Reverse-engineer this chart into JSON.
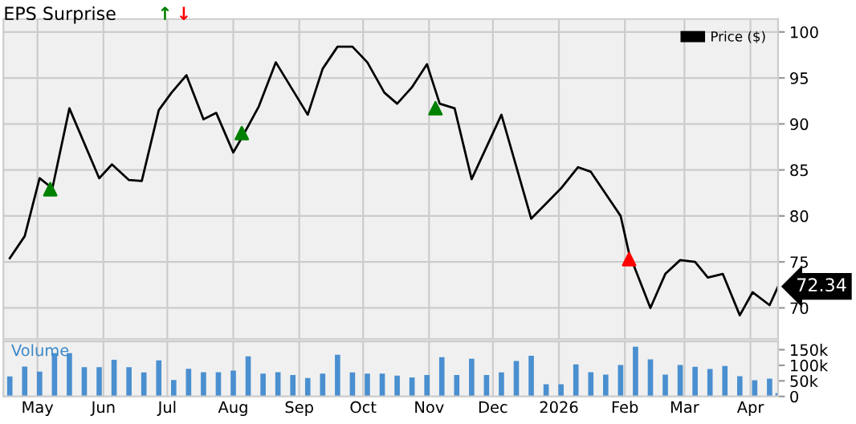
{
  "chart_data": [
    {
      "type": "line",
      "title": "EPS Surprise",
      "xlim": [
        "2025-04-15",
        "2026-04-14"
      ],
      "ylim": [
        66.6,
        101.4
      ],
      "yticks": [
        70,
        75,
        80,
        85,
        90,
        95,
        100
      ],
      "xticks": [
        {
          "value": "2025-05-01",
          "label": null
        },
        {
          "value": "2025-06-01",
          "label": null
        },
        {
          "value": "2025-07-01",
          "label": null
        },
        {
          "value": "2025-08-01",
          "label": null
        },
        {
          "value": "2025-09-01",
          "label": null
        },
        {
          "value": "2025-10-01",
          "label": null
        },
        {
          "value": "2025-11-01",
          "label": null
        },
        {
          "value": "2025-12-01",
          "label": null
        },
        {
          "value": "2026-01-01",
          "label": null
        },
        {
          "value": "2026-02-01",
          "label": null
        },
        {
          "value": "2026-03-01",
          "label": null
        },
        {
          "value": "2026-04-01",
          "label": null
        }
      ],
      "grid": true,
      "legend": "top right",
      "tick_labels": "y",
      "series": [
        {
          "name": "Price ($)",
          "type": "line",
          "color": "#000000",
          "x": [
            "2025-04-18",
            "2025-04-25",
            "2025-05-02",
            "2025-05-08",
            "2025-05-16",
            "2025-05-30",
            "2025-06-05",
            "2025-06-13",
            "2025-06-19",
            "2025-06-27",
            "2025-07-03",
            "2025-07-10",
            "2025-07-18",
            "2025-07-24",
            "2025-08-01",
            "2025-08-05",
            "2025-08-13",
            "2025-08-21",
            "2025-09-05",
            "2025-09-12",
            "2025-09-19",
            "2025-09-26",
            "2025-10-03",
            "2025-10-11",
            "2025-10-17",
            "2025-10-24",
            "2025-10-31",
            "2025-11-06",
            "2025-11-13",
            "2025-11-21",
            "2025-12-05",
            "2025-12-19",
            "2026-01-02",
            "2026-01-10",
            "2026-01-16",
            "2026-01-30",
            "2026-02-03",
            "2026-02-13",
            "2026-02-20",
            "2026-02-27",
            "2026-03-06",
            "2026-03-12",
            "2026-03-19",
            "2026-03-27",
            "2026-04-02",
            "2026-04-10",
            "2026-04-14"
          ],
          "values": [
            75.4,
            77.8,
            84.1,
            83.0,
            91.7,
            84.1,
            85.6,
            83.9,
            83.8,
            91.5,
            93.4,
            95.3,
            90.5,
            91.2,
            86.9,
            88.5,
            91.9,
            96.7,
            91.0,
            96.0,
            98.4,
            98.4,
            96.7,
            93.4,
            92.2,
            94.0,
            96.5,
            92.2,
            91.7,
            84.0,
            91.0,
            79.7,
            83.0,
            85.3,
            84.8,
            80.0,
            75.9,
            70.0,
            73.7,
            75.2,
            75.0,
            73.3,
            73.7,
            69.2,
            71.7,
            70.3,
            72.34
          ],
          "value_labels": [
            null,
            null,
            null,
            null,
            null,
            null,
            null,
            null,
            null,
            null,
            null,
            null,
            null,
            null,
            null,
            null,
            null,
            null,
            null,
            null,
            null,
            null,
            null,
            null,
            null,
            null,
            null,
            null,
            null,
            null,
            null,
            null,
            null,
            null,
            null,
            null,
            null,
            null,
            null,
            null,
            null,
            null,
            null,
            null,
            null,
            null,
            "72.34"
          ]
        },
        {
          "type": "scatter",
          "name": "↑",
          "color": "#008000",
          "marker": "triangle",
          "x": [
            "2025-05-07",
            "2025-08-05",
            "2025-11-04"
          ],
          "values": [
            82.9,
            89.0,
            91.7
          ]
        },
        {
          "type": "scatter",
          "name": "↓",
          "color": "#ff0000",
          "marker": "triangle",
          "x": [
            "2026-02-03"
          ],
          "values": [
            75.3
          ]
        }
      ]
    },
    {
      "type": "bar",
      "ylabel": "Volume",
      "xlim": [
        "2025-04-15",
        "2026-04-14"
      ],
      "ylim": [
        0,
        177000
      ],
      "yticks": [
        {
          "value": 0,
          "label": "0"
        },
        {
          "value": 50000,
          "label": "50k"
        },
        {
          "value": 100000,
          "label": "100k"
        },
        {
          "value": 150000,
          "label": "150k"
        }
      ],
      "xticks": [
        {
          "value": "2025-05-01",
          "label": "May"
        },
        {
          "value": "2025-06-01",
          "label": "Jun"
        },
        {
          "value": "2025-07-01",
          "label": "Jul"
        },
        {
          "value": "2025-08-01",
          "label": "Aug"
        },
        {
          "value": "2025-09-01",
          "label": "Sep"
        },
        {
          "value": "2025-10-01",
          "label": "Oct"
        },
        {
          "value": "2025-11-01",
          "label": "Nov"
        },
        {
          "value": "2025-12-01",
          "label": "Dec"
        },
        {
          "value": "2026-01-01",
          "label": "2026"
        },
        {
          "value": "2026-02-01",
          "label": "Feb"
        },
        {
          "value": "2026-03-01",
          "label": "Mar"
        },
        {
          "value": "2026-04-01",
          "label": "Apr"
        }
      ],
      "grid": "x",
      "x": [
        "2025-04-18",
        "2025-04-25",
        "2025-05-02",
        "2025-05-09",
        "2025-05-16",
        "2025-05-23",
        "2025-05-30",
        "2025-06-06",
        "2025-06-13",
        "2025-06-20",
        "2025-06-27",
        "2025-07-04",
        "2025-07-11",
        "2025-07-18",
        "2025-07-25",
        "2025-08-01",
        "2025-08-08",
        "2025-08-15",
        "2025-08-22",
        "2025-08-29",
        "2025-09-05",
        "2025-09-12",
        "2025-09-19",
        "2025-09-26",
        "2025-10-03",
        "2025-10-10",
        "2025-10-17",
        "2025-10-24",
        "2025-10-31",
        "2025-11-07",
        "2025-11-14",
        "2025-11-21",
        "2025-11-28",
        "2025-12-05",
        "2025-12-12",
        "2025-12-19",
        "2025-12-26",
        "2026-01-02",
        "2026-01-09",
        "2026-01-16",
        "2026-01-23",
        "2026-01-30",
        "2026-02-06",
        "2026-02-13",
        "2026-02-20",
        "2026-02-27",
        "2026-03-06",
        "2026-03-13",
        "2026-03-20",
        "2026-03-27",
        "2026-04-03",
        "2026-04-10",
        "2026-04-14"
      ],
      "series": [
        {
          "color": "#4a8fd0",
          "values": [
            64000,
            96000,
            80000,
            139000,
            139000,
            94000,
            94000,
            118000,
            94000,
            77000,
            116000,
            53000,
            89000,
            78000,
            78000,
            83000,
            129000,
            73000,
            78000,
            69000,
            59000,
            73000,
            134000,
            77000,
            73000,
            73000,
            67000,
            61000,
            69000,
            126000,
            69000,
            121000,
            69000,
            77000,
            114000,
            131000,
            39000,
            39000,
            103000,
            78000,
            70000,
            101000,
            160000,
            119000,
            70000,
            101000,
            95000,
            88000,
            98000,
            65000,
            52000,
            57000,
            11000
          ]
        }
      ]
    }
  ]
}
